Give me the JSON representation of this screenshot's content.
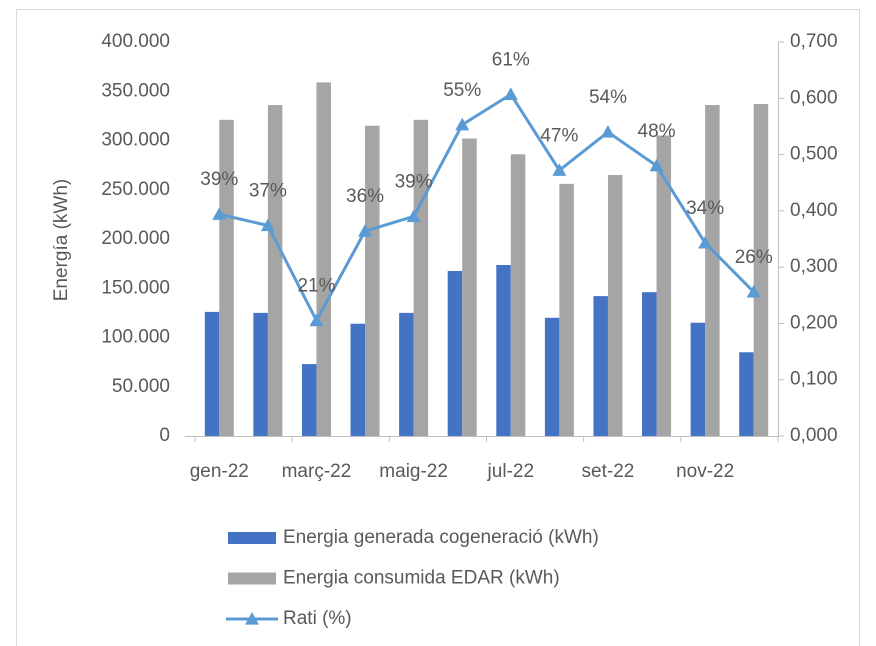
{
  "chart_data": {
    "type": "bar",
    "y_label": "Energía (kWh)",
    "categories": [
      "gen-22",
      null,
      "març-22",
      null,
      "maig-22",
      null,
      "jul-22",
      null,
      "set-22",
      null,
      "nov-22",
      null
    ],
    "series": [
      {
        "name": "Energia generada cogeneració (kWh)",
        "color": "#4472c4",
        "axis": "y",
        "values": [
          126000,
          125000,
          73000,
          114000,
          125000,
          167500,
          173600,
          120000,
          142000,
          146000,
          115000,
          85000
        ]
      },
      {
        "name": "Energia consumida EDAR (kWh)",
        "color": "#a5a5a5",
        "axis": "y",
        "values": [
          321000,
          336000,
          359000,
          315000,
          321000,
          302000,
          286000,
          256000,
          265000,
          305000,
          336000,
          337000
        ]
      },
      {
        "name": "Rati (%)",
        "color": "#5b9bd5",
        "axis": "y2",
        "type": "line",
        "marker": "triangle",
        "values": [
          0.394,
          0.374,
          0.205,
          0.364,
          0.39,
          0.553,
          0.607,
          0.472,
          0.54,
          0.48,
          0.343,
          0.256
        ],
        "value_labels": [
          "39%",
          "37%",
          "21%",
          "36%",
          "39%",
          "55%",
          "61%",
          "47%",
          "54%",
          "48%",
          "34%",
          "26%"
        ]
      }
    ],
    "ylim": [
      0,
      400000
    ],
    "yticks": [
      0,
      {
        "value": 50000,
        "label": "50.000"
      },
      {
        "value": 100000,
        "label": "100.000"
      },
      {
        "value": 150000,
        "label": "150.000"
      },
      {
        "value": 200000,
        "label": "200.000"
      },
      {
        "value": 250000,
        "label": "250.000"
      },
      {
        "value": 300000,
        "label": "300.000"
      },
      {
        "value": 350000,
        "label": "350.000"
      },
      {
        "value": 400000,
        "label": "400.000"
      }
    ],
    "y2lim": [
      0,
      0.7
    ],
    "y2ticks": [
      {
        "value": 0,
        "label": "0,000"
      },
      {
        "value": 0.1,
        "label": "0,100"
      },
      {
        "value": 0.2,
        "label": "0,200"
      },
      {
        "value": 0.3,
        "label": "0,300"
      },
      {
        "value": 0.4,
        "label": "0,400"
      },
      {
        "value": 0.5,
        "label": "0,500"
      },
      {
        "value": 0.6,
        "label": "0,600"
      },
      {
        "value": 0.7,
        "label": "0,700"
      }
    ],
    "legend": "bottom"
  }
}
